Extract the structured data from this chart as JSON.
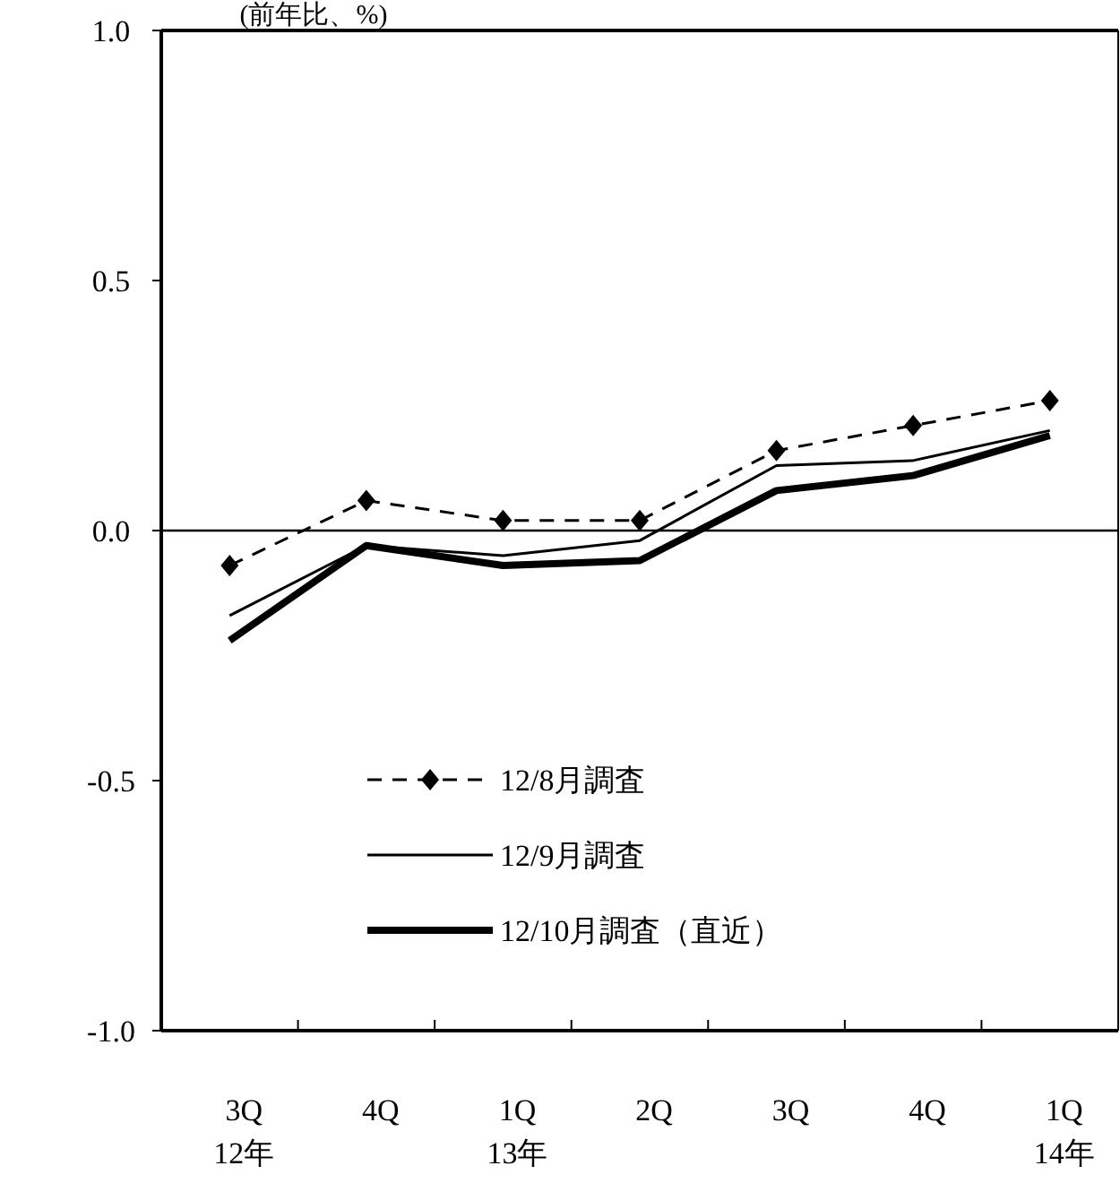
{
  "chart_data": {
    "type": "line",
    "ylabel": "(前年比、%)",
    "categories": [
      "3Q\n12年",
      "4Q",
      "1Q\n13年",
      "2Q",
      "3Q",
      "4Q",
      "1Q\n14年"
    ],
    "series": [
      {
        "name": "12/8月調査",
        "color": "#000000",
        "line_style": "dashed",
        "marker": "diamond",
        "values": [
          -0.07,
          0.06,
          0.02,
          0.02,
          0.16,
          0.21,
          0.26
        ]
      },
      {
        "name": "12/9月調査",
        "color": "#000000",
        "line_style": "solid",
        "marker": "none",
        "values": [
          -0.17,
          -0.03,
          -0.05,
          -0.02,
          0.13,
          0.14,
          0.2
        ]
      },
      {
        "name": "12/10月調査（直近）",
        "color": "#000000",
        "line_style": "solid",
        "marker": "none",
        "values": [
          -0.22,
          -0.03,
          -0.07,
          -0.06,
          0.08,
          0.11,
          0.19
        ]
      }
    ],
    "ylim": [
      -1,
      1
    ],
    "yticks": [
      {
        "value": -1,
        "label": "-1.0"
      },
      {
        "value": -0.5,
        "label": "-0.5"
      },
      {
        "value": 0,
        "label": "0.0"
      },
      {
        "value": 0.5,
        "label": "0.5"
      },
      {
        "value": 1,
        "label": "1.0"
      }
    ],
    "ref_lines": [
      {
        "axis": "y",
        "value": 0,
        "color": "#000000"
      }
    ],
    "grid": false,
    "legend": "bottom"
  }
}
